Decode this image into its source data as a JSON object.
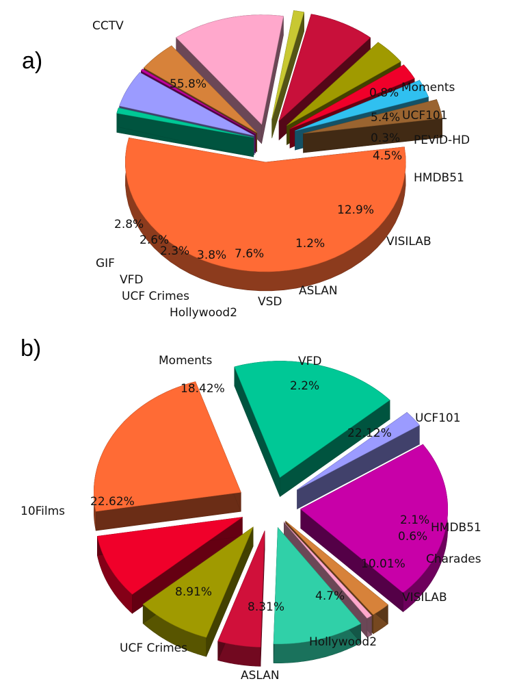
{
  "chart_data": [
    {
      "type": "pie",
      "panel_label": "a)",
      "title": "",
      "slices": [
        {
          "label": "CCTV",
          "value": 55.8,
          "value_label": "55.8%",
          "color": "#FF6B35"
        },
        {
          "label": "Moments",
          "value": 0.8,
          "value_label": "0.8%",
          "color": "#00C896"
        },
        {
          "label": "UCF101",
          "value": 5.4,
          "value_label": "5.4%",
          "color": "#9B9BFF"
        },
        {
          "label": "PEViD-HD",
          "value": 0.3,
          "value_label": "0.3%",
          "color": "#C000A0"
        },
        {
          "label": "HMDB51",
          "value": 4.5,
          "value_label": "4.5%",
          "color": "#D7823A"
        },
        {
          "label": "VISILAB",
          "value": 12.9,
          "value_label": "12.9%",
          "color": "#FFA8CC"
        },
        {
          "label": "ASLAN",
          "value": 1.2,
          "value_label": "1.2%",
          "color": "#C8C832"
        },
        {
          "label": "VSD",
          "value": 7.6,
          "value_label": "7.6%",
          "color": "#C8103A"
        },
        {
          "label": "Hollywood2",
          "value": 3.8,
          "value_label": "3.8%",
          "color": "#A09A00"
        },
        {
          "label": "UCF Crimes",
          "value": 2.3,
          "value_label": "2.3%",
          "color": "#F0002A"
        },
        {
          "label": "VFD",
          "value": 2.6,
          "value_label": "2.6%",
          "color": "#30C0F0"
        },
        {
          "label": "GIF",
          "value": 2.8,
          "value_label": "2.8%",
          "color": "#9A6430"
        }
      ]
    },
    {
      "type": "pie",
      "panel_label": "b)",
      "title": "",
      "slices": [
        {
          "label": "Moments",
          "value": 18.42,
          "value_label": "18.42%",
          "color": "#00C896"
        },
        {
          "label": "VFD",
          "value": 2.2,
          "value_label": "2.2%",
          "color": "#9B9BFF"
        },
        {
          "label": "UCF101",
          "value": 22.12,
          "value_label": "22.12%",
          "color": "#C800A8"
        },
        {
          "label": "HMDB51",
          "value": 2.1,
          "value_label": "2.1%",
          "color": "#D7823A"
        },
        {
          "label": "Charades",
          "value": 0.6,
          "value_label": "0.6%",
          "color": "#FFA8CC"
        },
        {
          "label": "VISILAB",
          "value": 10.01,
          "value_label": "10.01%",
          "color": "#30D0A8"
        },
        {
          "label": "Hollywood2",
          "value": 4.7,
          "value_label": "4.7%",
          "color": "#D0103A"
        },
        {
          "label": "ASLAN",
          "value": 8.31,
          "value_label": "8.31%",
          "color": "#A09A00"
        },
        {
          "label": "UCF Crimes",
          "value": 8.91,
          "value_label": "8.91%",
          "color": "#F0002A"
        },
        {
          "label": "10Films",
          "value": 22.62,
          "value_label": "22.62%",
          "color": "#FF6B35"
        }
      ]
    }
  ]
}
